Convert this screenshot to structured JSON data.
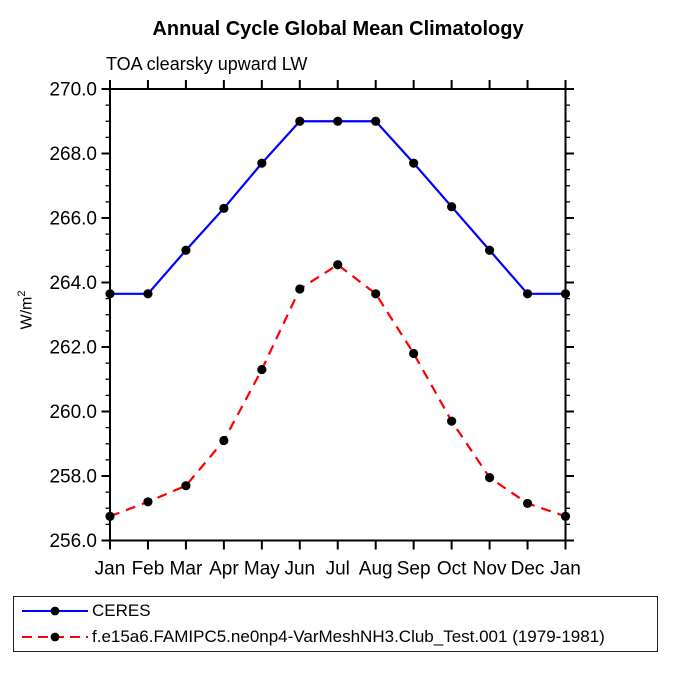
{
  "chart_data": {
    "type": "line",
    "title": "Annual Cycle Global Mean Climatology",
    "subtitle": "TOA clearsky upward LW",
    "ylabel": {
      "base": "W/m",
      "sup": "2"
    },
    "ylim": [
      256.0,
      270.0
    ],
    "ytick_step": 2.0,
    "ytick_minor_step": 0.5,
    "ytick_labels": [
      "256.0",
      "258.0",
      "260.0",
      "262.0",
      "264.0",
      "266.0",
      "268.0",
      "270.0"
    ],
    "categories": [
      "Jan",
      "Feb",
      "Mar",
      "Apr",
      "May",
      "Jun",
      "Jul",
      "Aug",
      "Sep",
      "Oct",
      "Nov",
      "Dec",
      "Jan"
    ],
    "grid": false,
    "legend_position": "bottom-left",
    "axis_color": "#000000",
    "marker_color": "#000000",
    "series": [
      {
        "name": "CERES",
        "color": "#0000ff",
        "line_style": "solid",
        "values": [
          263.65,
          263.65,
          265.0,
          266.3,
          267.7,
          269.0,
          269.0,
          269.0,
          267.7,
          266.35,
          265.0,
          263.65,
          263.65
        ]
      },
      {
        "name": "f.e15a6.FAMIPC5.ne0np4-VarMeshNH3.Club_Test.001 (1979-1981)",
        "color": "#ff0000",
        "line_style": "dashed",
        "values": [
          256.75,
          257.2,
          257.7,
          259.1,
          261.3,
          263.8,
          264.55,
          263.65,
          261.8,
          259.7,
          257.95,
          257.15,
          256.75
        ]
      }
    ]
  }
}
